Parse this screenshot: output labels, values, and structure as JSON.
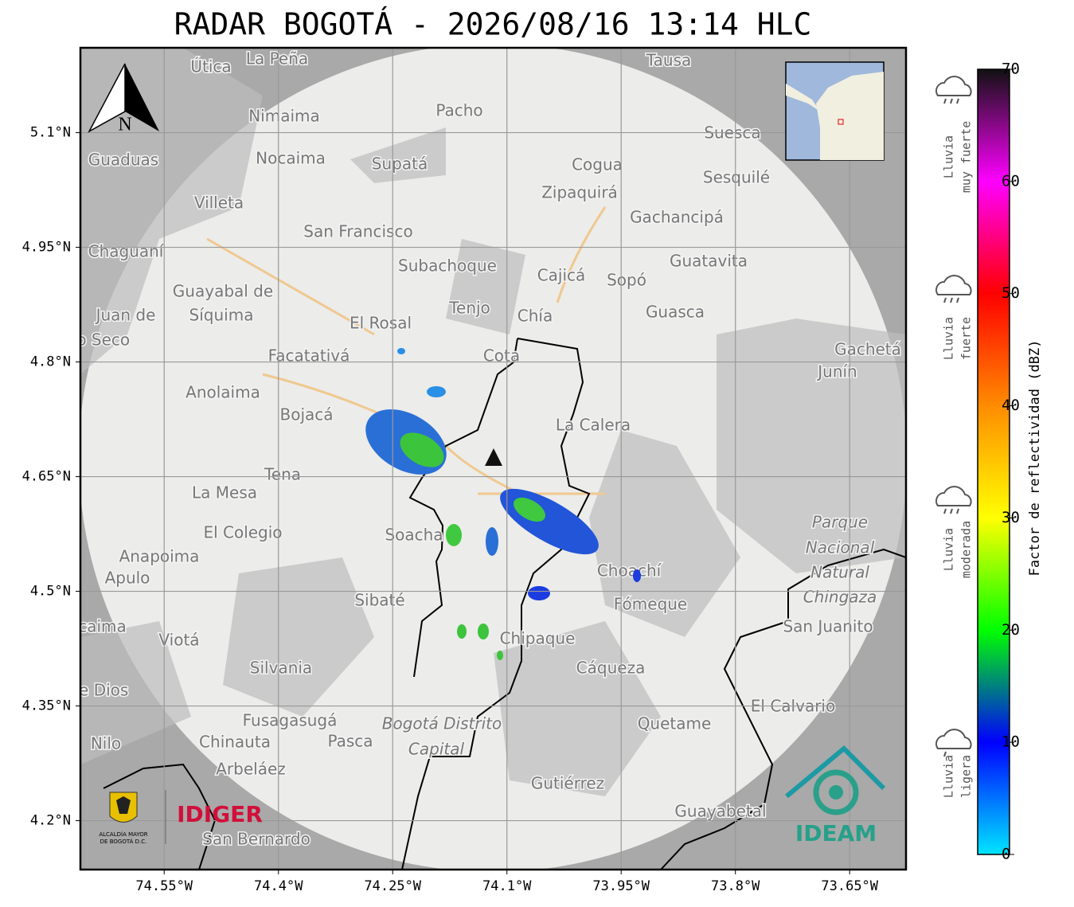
{
  "title": "RADAR BOGOTÁ - 2026/08/16 13:14 HLC",
  "map": {
    "xlim": [
      -74.66,
      -73.576
    ],
    "ylim": [
      4.136,
      5.211
    ],
    "xticks": [
      {
        "value": -74.55,
        "label": "74.55°W"
      },
      {
        "value": -74.4,
        "label": "74.4°W"
      },
      {
        "value": -74.25,
        "label": "74.25°W"
      },
      {
        "value": -74.1,
        "label": "74.1°W"
      },
      {
        "value": -73.95,
        "label": "73.95°W"
      },
      {
        "value": -73.8,
        "label": "73.8°W"
      },
      {
        "value": -73.65,
        "label": "73.65°W"
      }
    ],
    "yticks": [
      {
        "value": 5.1,
        "label": "5.1°N"
      },
      {
        "value": 4.95,
        "label": "4.95°N"
      },
      {
        "value": 4.8,
        "label": "4.8°N"
      },
      {
        "value": 4.65,
        "label": "4.65°N"
      },
      {
        "value": 4.5,
        "label": "4.5°N"
      },
      {
        "value": 4.35,
        "label": "4.35°N"
      },
      {
        "value": 4.2,
        "label": "4.2°N"
      }
    ],
    "grid": true,
    "north": "N",
    "places": [
      "La Peña",
      "Útica",
      "Tausa",
      "Pacho",
      "Nimaima",
      "Suesca",
      "Guaduas",
      "Nocaima",
      "Supatá",
      "Cogua",
      "Sesquilé",
      "Zipaquirá",
      "Villeta",
      "Gachancipá",
      "San Francisco",
      "Chaguaní",
      "Guatavita",
      "Subachoque",
      "Cajicá",
      "Sopó",
      "Guayabal de",
      "Síquima",
      "Tenjo",
      "Guasca",
      "Chía",
      "Juan de",
      "Río Seco",
      "El Rosal",
      "Gachetá",
      "Facatativá",
      "Cota",
      "Junín",
      "Anolaima",
      "Bojacá",
      "La Calera",
      "Tena",
      "La Mesa",
      "Parque",
      "Nacional",
      "Natural",
      "Chingaza",
      "El Colegio",
      "Soacha",
      "Anapoima",
      "Apulo",
      "Choachí",
      "Sibaté",
      "Fómeque",
      "San Juanito",
      "Tocaima",
      "Viotá",
      "Chipaque",
      "Silvania",
      "Cáqueza",
      "Agua de Dios",
      "El Calvario",
      "Fusagasugá",
      "Bogotá Distrito",
      "Capital",
      "Quetame",
      "Nilo",
      "Chinauta",
      "Pasca",
      "Arbeláez",
      "Gutiérrez",
      "Guayabetal",
      "San Bernardo"
    ]
  },
  "colorbar": {
    "label": "Factor de reflectividad (dBZ)",
    "ylim": [
      0,
      70
    ],
    "yticks": [
      0,
      10,
      20,
      30,
      40,
      50,
      60,
      70
    ],
    "colors": [
      "#00e5ff",
      "#0000ff",
      "#00ff00",
      "#ffff00",
      "#ff8c00",
      "#ff0000",
      "#ff00ff",
      "#111111"
    ],
    "categories": [
      [
        "Lluvia",
        "muy fuerte"
      ],
      [
        "Lluvia",
        "fuerte"
      ],
      [
        "Lluvia",
        "moderada"
      ],
      [
        "Lluvia",
        "ligera"
      ]
    ]
  },
  "logos": {
    "alcaldia": [
      "ALCALDÍA MAYOR",
      "DE BOGOTÁ D.C."
    ],
    "idiger": "IDIGER",
    "ideam": "IDEAM"
  }
}
